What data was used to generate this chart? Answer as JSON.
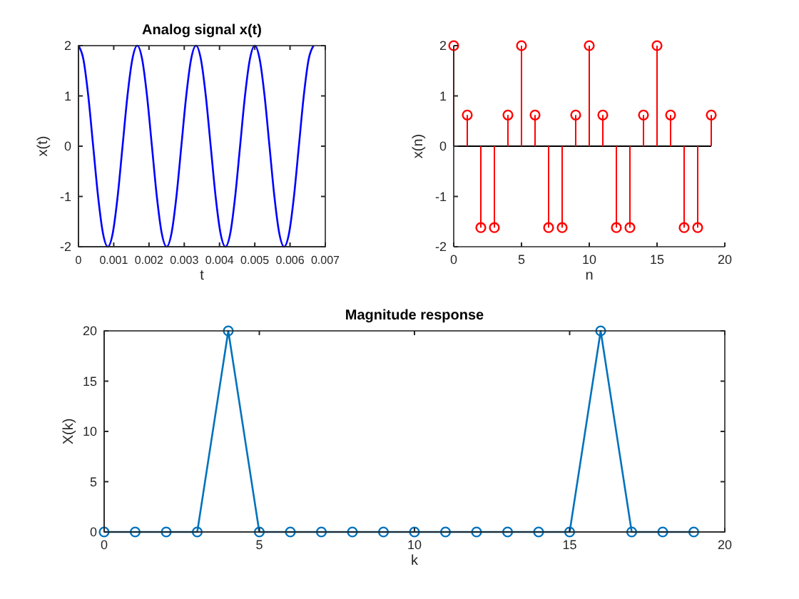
{
  "chart_data": [
    {
      "type": "line",
      "title": "Analog signal x(t)",
      "xlabel": "t",
      "ylabel": "x(t)",
      "xlim": [
        0,
        0.007
      ],
      "xticks": [
        0,
        0.001,
        0.002,
        0.003,
        0.004,
        0.005,
        0.006,
        0.007
      ],
      "ylim": [
        -2,
        2
      ],
      "yticks": [
        -2,
        -1,
        0,
        1,
        2
      ],
      "marker": "none",
      "x": [
        0,
        0.000139,
        0.000278,
        0.000417,
        0.000556,
        0.000694,
        0.000833,
        0.000972,
        0.001111,
        0.00125,
        0.001389,
        0.001528,
        0.001667,
        0.001806,
        0.001944,
        0.002083,
        0.002222,
        0.002361,
        0.0025,
        0.002639,
        0.002778,
        0.002917,
        0.003056,
        0.003194,
        0.003333,
        0.003472,
        0.003611,
        0.00375,
        0.003889,
        0.004028,
        0.004167,
        0.004306,
        0.004444,
        0.004583,
        0.004722,
        0.004861,
        0.005,
        0.005139,
        0.005278,
        0.005417,
        0.005556,
        0.005694,
        0.005833,
        0.005972,
        0.006111,
        0.00625,
        0.006389,
        0.006528,
        0.006667
      ],
      "series": [
        {
          "color": "#0000ff",
          "values": [
            2,
            1.73,
            1,
            0,
            -1,
            -1.73,
            -2,
            -1.73,
            -1,
            0,
            1,
            1.73,
            2,
            1.73,
            1,
            0,
            -1,
            -1.73,
            -2,
            -1.73,
            -1,
            0,
            1,
            1.73,
            2,
            1.73,
            1,
            0,
            -1,
            -1.73,
            -2,
            -1.73,
            -1,
            0,
            1,
            1.73,
            2,
            1.73,
            1,
            0,
            -1,
            -1.73,
            -2,
            -1.73,
            -1,
            0,
            1,
            1.73,
            2
          ]
        }
      ]
    },
    {
      "type": "lollipop",
      "xlabel": "n",
      "ylabel": "x(n)",
      "xlim": [
        0,
        20
      ],
      "xticks": [
        0,
        5,
        10,
        15,
        20
      ],
      "ylim": [
        -2,
        2
      ],
      "yticks": [
        -2,
        -1,
        0,
        1,
        2
      ],
      "marker": "circle",
      "x": [
        0,
        1,
        2,
        3,
        4,
        5,
        6,
        7,
        8,
        9,
        10,
        11,
        12,
        13,
        14,
        15,
        16,
        17,
        18,
        19
      ],
      "series": [
        {
          "color": "#ff0000",
          "values": [
            2,
            0.62,
            -1.62,
            -1.62,
            0.62,
            2,
            0.62,
            -1.62,
            -1.62,
            0.62,
            2,
            0.62,
            -1.62,
            -1.62,
            0.62,
            2,
            0.62,
            -1.62,
            -1.62,
            0.62
          ]
        }
      ]
    },
    {
      "type": "line",
      "title": "Magnitude response",
      "xlabel": "k",
      "ylabel": "X(k)",
      "xlim": [
        0,
        20
      ],
      "xticks": [
        0,
        5,
        10,
        15,
        20
      ],
      "ylim": [
        0,
        20
      ],
      "yticks": [
        0,
        5,
        10,
        15,
        20
      ],
      "marker": "circle",
      "x": [
        0,
        1,
        2,
        3,
        4,
        5,
        6,
        7,
        8,
        9,
        10,
        11,
        12,
        13,
        14,
        15,
        16,
        17,
        18,
        19
      ],
      "series": [
        {
          "color": "#0072bd",
          "values": [
            0,
            0,
            0,
            0,
            20,
            0,
            0,
            0,
            0,
            0,
            0,
            0,
            0,
            0,
            0,
            0,
            20,
            0,
            0,
            0
          ]
        }
      ]
    }
  ]
}
